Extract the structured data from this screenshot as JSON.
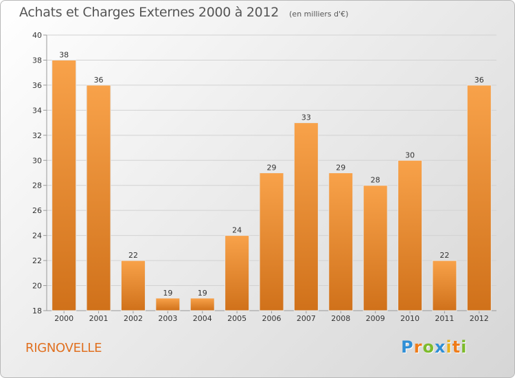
{
  "header": {
    "title": "Achats et Charges Externes 2000 à 2012",
    "unit": "(en milliers d'€)"
  },
  "footer": {
    "commune": "RIGNOVELLE",
    "logo_letters": [
      "P",
      "r",
      "o",
      "x",
      "i",
      "t",
      "i"
    ]
  },
  "colors": {
    "bar_light": "#f8a24a",
    "bar_dark": "#d0711a",
    "commune_text": "#e07020"
  },
  "chart_data": {
    "type": "bar",
    "title": "Achats et Charges Externes 2000 à 2012",
    "subtitle": "(en milliers d'€)",
    "xlabel": "",
    "ylabel": "",
    "categories": [
      "2000",
      "2001",
      "2002",
      "2003",
      "2004",
      "2005",
      "2006",
      "2007",
      "2008",
      "2009",
      "2010",
      "2011",
      "2012"
    ],
    "values": [
      38,
      36,
      22,
      19,
      19,
      24,
      29,
      33,
      29,
      28,
      30,
      22,
      36
    ],
    "ylim": [
      18,
      40
    ],
    "yticks": [
      18,
      20,
      22,
      24,
      26,
      28,
      30,
      32,
      34,
      36,
      38,
      40
    ],
    "grid": true,
    "legend": "none"
  }
}
